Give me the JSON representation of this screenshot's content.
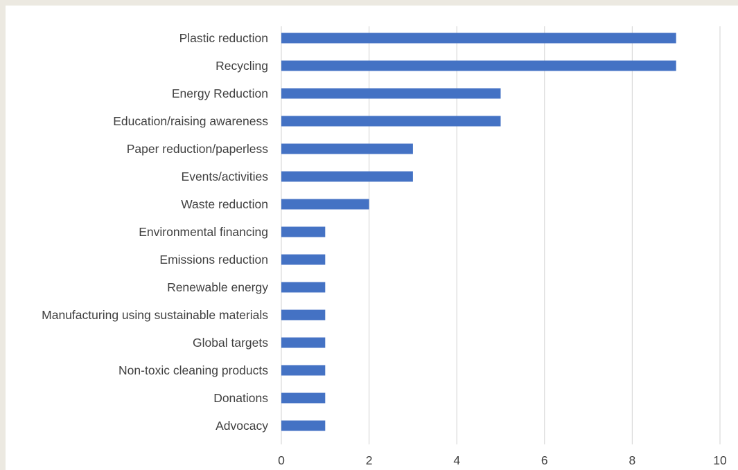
{
  "chart_data": {
    "type": "bar",
    "orientation": "horizontal",
    "categories": [
      "Plastic reduction",
      "Recycling",
      "Energy Reduction",
      "Education/raising awareness",
      "Paper reduction/paperless",
      "Events/activities",
      "Waste reduction",
      "Environmental financing",
      "Emissions reduction",
      "Renewable energy",
      "Manufacturing using sustainable materials",
      "Global targets",
      "Non-toxic cleaning products",
      "Donations",
      "Advocacy"
    ],
    "values": [
      9,
      9,
      5,
      5,
      3,
      3,
      2,
      1,
      1,
      1,
      1,
      1,
      1,
      1,
      1
    ],
    "title": "",
    "xlabel": "",
    "ylabel": "",
    "xlim": [
      0,
      10
    ],
    "xticks": [
      "0",
      "2",
      "4",
      "6",
      "8",
      "10"
    ],
    "grid": "vertical",
    "legend": "none",
    "bar_color": "#4472c4"
  }
}
